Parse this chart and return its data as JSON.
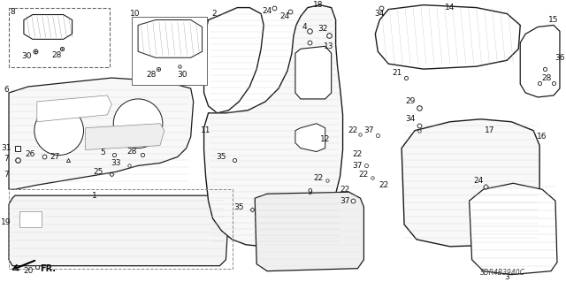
{
  "bg_color": "#ffffff",
  "diagram_code": "SDR4B3940C",
  "line_color": "#1a1a1a",
  "gray_color": "#888888",
  "hatch_color": "#aaaaaa",
  "label_color": "#111111",
  "label_fontsize": 6.5,
  "diagram_code_fontsize": 5.5
}
